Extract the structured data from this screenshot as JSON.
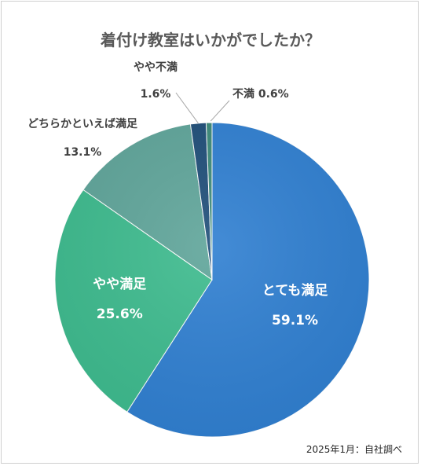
{
  "chart_data": {
    "type": "pie",
    "title": "着付け教室はいかがでしたか？",
    "start_angle_deg": 0,
    "direction": "clockwise",
    "slices": [
      {
        "label": "とても満足",
        "value": 59.1,
        "value_text": "59.1%",
        "color": "#2f7fd1",
        "label_style": "inside"
      },
      {
        "label": "やや満足",
        "value": 25.6,
        "value_text": "25.6%",
        "color": "#3dbb8e",
        "label_style": "inside"
      },
      {
        "label": "どちらかといえば満足",
        "value": 13.1,
        "value_text": "13.1%",
        "color": "#5fa59a",
        "label_style": "outside"
      },
      {
        "label": "やや不満",
        "value": 1.6,
        "value_text": "1.6%",
        "color": "#1f4e79",
        "label_style": "outside"
      },
      {
        "label": "不満",
        "value": 0.6,
        "value_text": "0.6%",
        "color": "#3c8a7a",
        "label_style": "outside-inline"
      }
    ],
    "source": "2025年1月：自社調べ"
  }
}
